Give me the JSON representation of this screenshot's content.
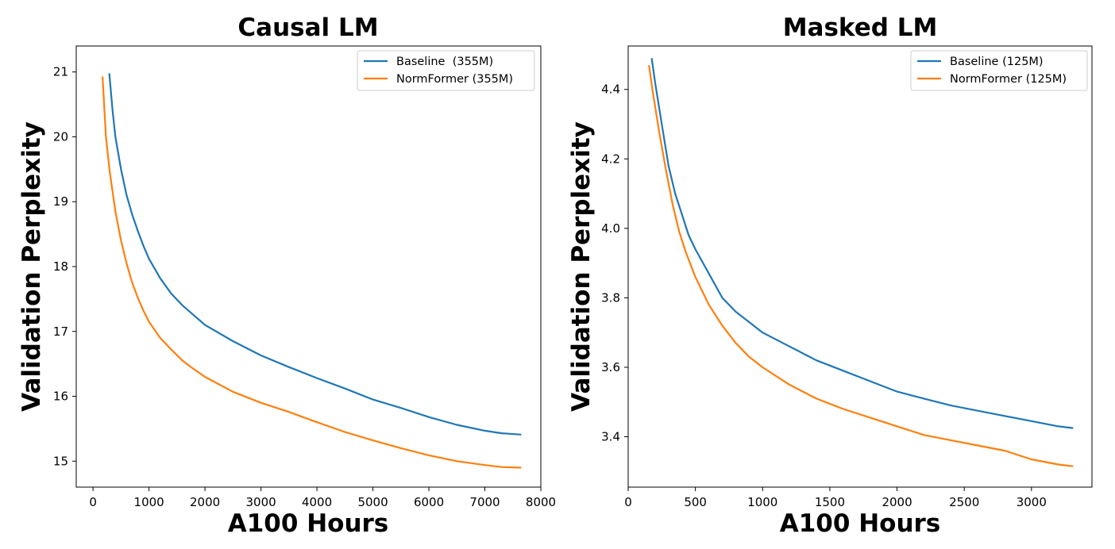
{
  "colors": {
    "baseline": "#1f77b4",
    "normformer": "#ff7f0e"
  },
  "chart_data": [
    {
      "type": "line",
      "title": "Causal LM",
      "xlabel": "A100 Hours",
      "ylabel": "Validation Perplexity",
      "xlim": [
        -300,
        8000
      ],
      "ylim": [
        14.6,
        21.4
      ],
      "xticks": [
        0,
        1000,
        2000,
        3000,
        4000,
        5000,
        6000,
        7000,
        8000
      ],
      "yticks": [
        15,
        16,
        17,
        18,
        19,
        20,
        21
      ],
      "legend": "top-right",
      "grid": false,
      "series": [
        {
          "name": "Baseline  (355M)",
          "color": "#1f77b4",
          "x": [
            290,
            350,
            400,
            500,
            600,
            700,
            800,
            900,
            1000,
            1200,
            1400,
            1600,
            1800,
            2000,
            2500,
            3000,
            3500,
            4000,
            4500,
            5000,
            5500,
            6000,
            6500,
            7000,
            7300,
            7650
          ],
          "y": [
            20.98,
            20.4,
            20.0,
            19.5,
            19.1,
            18.8,
            18.55,
            18.32,
            18.12,
            17.82,
            17.58,
            17.4,
            17.25,
            17.1,
            16.85,
            16.63,
            16.45,
            16.28,
            16.12,
            15.95,
            15.82,
            15.68,
            15.56,
            15.47,
            15.43,
            15.41
          ]
        },
        {
          "name": "NormFormer (355M)",
          "color": "#ff7f0e",
          "x": [
            170,
            230,
            300,
            400,
            500,
            600,
            700,
            800,
            900,
            1000,
            1200,
            1400,
            1600,
            1800,
            2000,
            2500,
            3000,
            3500,
            4000,
            4500,
            5000,
            5500,
            6000,
            6500,
            7000,
            7300,
            7650
          ],
          "y": [
            20.93,
            20.0,
            19.45,
            18.85,
            18.4,
            18.05,
            17.75,
            17.52,
            17.32,
            17.15,
            16.9,
            16.72,
            16.55,
            16.42,
            16.3,
            16.07,
            15.9,
            15.76,
            15.6,
            15.45,
            15.32,
            15.2,
            15.09,
            15.0,
            14.94,
            14.91,
            14.9
          ]
        }
      ]
    },
    {
      "type": "line",
      "title": "Masked LM",
      "xlabel": "A100 Hours",
      "ylabel": "Validation Perplexity",
      "xlim": [
        0,
        3450
      ],
      "ylim": [
        3.255,
        4.525
      ],
      "xticks": [
        0,
        500,
        1000,
        1500,
        2000,
        2500,
        3000
      ],
      "yticks": [
        3.4,
        3.6,
        3.8,
        4.0,
        4.2,
        4.4
      ],
      "legend": "top-right",
      "grid": false,
      "series": [
        {
          "name": "Baseline (125M)",
          "color": "#1f77b4",
          "x": [
            175,
            200,
            250,
            300,
            350,
            400,
            450,
            500,
            600,
            700,
            800,
            900,
            1000,
            1200,
            1400,
            1600,
            1800,
            2000,
            2200,
            2400,
            2600,
            2800,
            3000,
            3200,
            3310
          ],
          "y": [
            4.49,
            4.42,
            4.3,
            4.18,
            4.1,
            4.04,
            3.98,
            3.94,
            3.87,
            3.8,
            3.76,
            3.73,
            3.7,
            3.66,
            3.62,
            3.59,
            3.56,
            3.53,
            3.51,
            3.49,
            3.475,
            3.46,
            3.445,
            3.43,
            3.425
          ]
        },
        {
          "name": "NormFormer (125M)",
          "color": "#ff7f0e",
          "x": [
            155,
            180,
            230,
            280,
            330,
            380,
            430,
            500,
            600,
            700,
            800,
            900,
            1000,
            1200,
            1400,
            1600,
            1800,
            2000,
            2200,
            2400,
            2600,
            2800,
            3000,
            3200,
            3310
          ],
          "y": [
            4.47,
            4.4,
            4.28,
            4.17,
            4.07,
            3.99,
            3.93,
            3.86,
            3.78,
            3.72,
            3.67,
            3.63,
            3.6,
            3.55,
            3.51,
            3.48,
            3.455,
            3.43,
            3.405,
            3.39,
            3.375,
            3.36,
            3.335,
            3.32,
            3.315
          ]
        }
      ]
    }
  ]
}
